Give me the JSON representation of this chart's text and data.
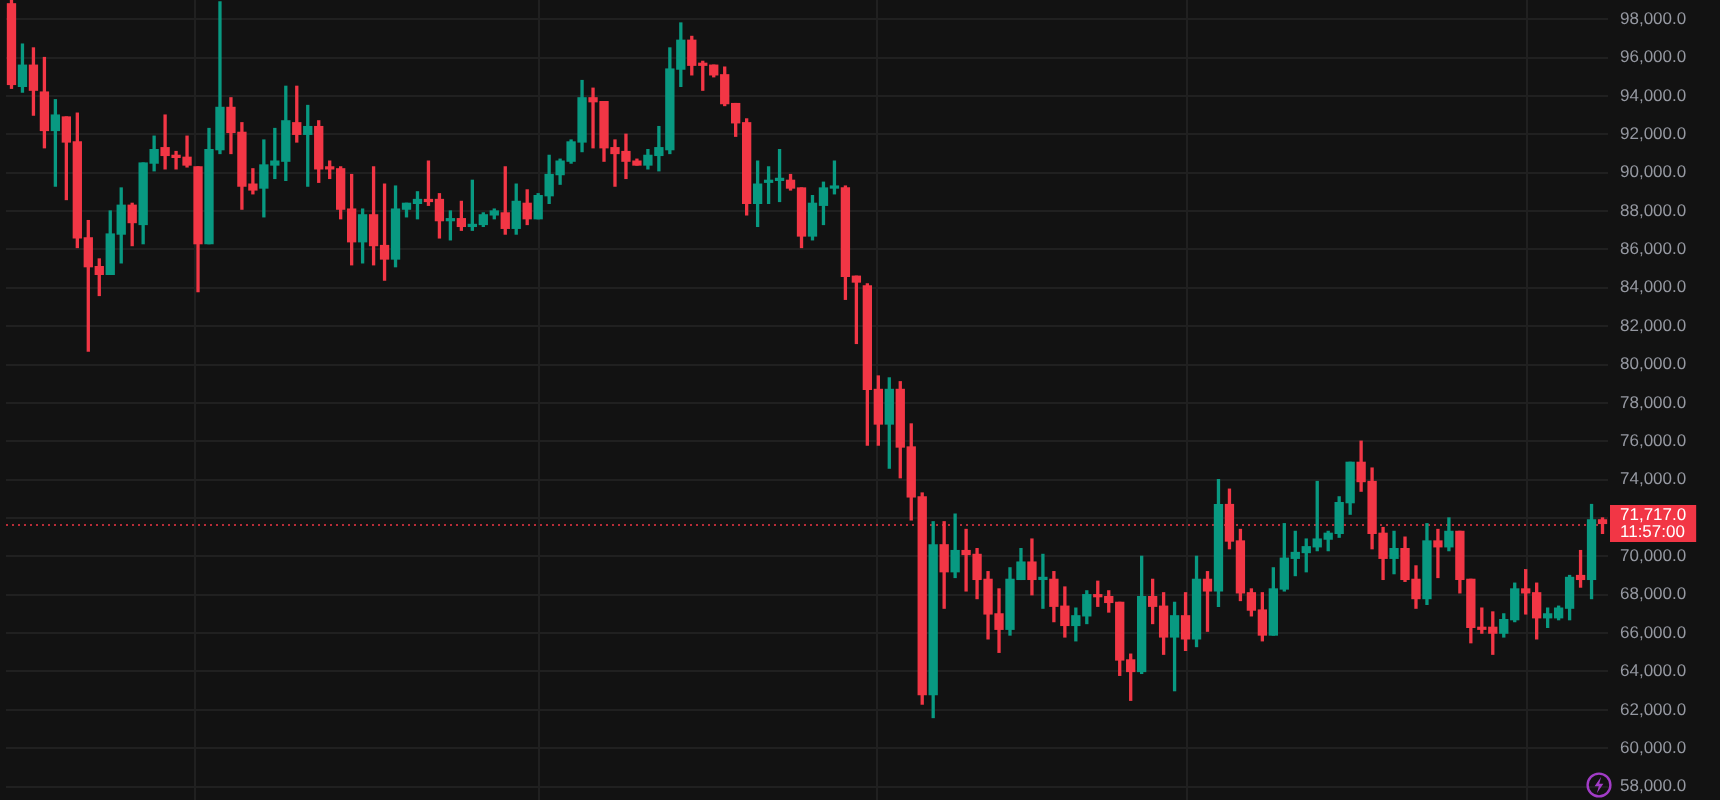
{
  "chart_data": {
    "type": "candlestick",
    "categories": [
      null,
      null,
      null,
      null,
      null,
      null,
      null,
      null,
      null,
      null,
      null,
      null,
      null,
      null,
      null,
      null,
      null,
      null,
      null,
      null,
      null,
      null,
      null,
      null,
      null,
      null,
      null,
      null,
      null,
      null,
      null,
      null,
      null,
      null,
      null,
      null,
      null,
      null,
      null,
      null,
      null,
      null,
      null,
      null,
      null,
      null,
      null,
      null,
      null,
      null,
      null,
      null,
      null,
      null,
      null,
      null,
      null,
      null,
      null,
      null,
      null,
      null,
      null,
      null,
      null,
      null,
      null,
      null,
      null,
      null,
      null,
      null,
      null,
      null,
      null,
      null,
      null,
      null,
      null,
      null,
      null,
      null,
      null,
      null,
      null,
      null,
      null,
      null,
      null,
      null,
      null,
      null,
      null,
      null,
      null,
      null,
      null,
      null,
      null,
      null,
      null,
      null,
      null,
      null,
      null,
      null,
      null,
      null,
      null,
      null,
      null,
      null,
      null,
      null,
      null,
      null,
      null,
      null,
      null,
      null,
      null,
      null,
      null,
      null,
      null,
      null,
      null,
      null,
      null,
      null,
      null,
      null,
      null,
      null,
      null,
      null,
      null,
      null,
      null,
      null,
      null,
      null,
      null,
      null,
      null,
      null
    ],
    "ohlc": [
      [
        98800,
        99000,
        94400,
        94600
      ],
      [
        94500,
        96700,
        94200,
        95600
      ],
      [
        95600,
        96500,
        93000,
        94300
      ],
      [
        94200,
        96000,
        91300,
        92200
      ],
      [
        92200,
        93800,
        89300,
        93000
      ],
      [
        92900,
        92900,
        88600,
        91600
      ],
      [
        91600,
        93100,
        86100,
        86600
      ],
      [
        86600,
        87500,
        80700,
        85100
      ],
      [
        85100,
        85500,
        83600,
        84700
      ],
      [
        84700,
        88000,
        84700,
        86800
      ],
      [
        86800,
        89200,
        85300,
        88300
      ],
      [
        88300,
        88400,
        86200,
        87400
      ],
      [
        87300,
        90500,
        86300,
        90500
      ],
      [
        90500,
        91900,
        90100,
        91200
      ],
      [
        91300,
        93000,
        90200,
        90900
      ],
      [
        90900,
        91100,
        90200,
        90800
      ],
      [
        90800,
        91900,
        90300,
        90400
      ],
      [
        90300,
        90300,
        83800,
        86300
      ],
      [
        86300,
        92300,
        86300,
        91200
      ],
      [
        91200,
        98900,
        91000,
        93400
      ],
      [
        93400,
        93900,
        91000,
        92100
      ],
      [
        92100,
        92600,
        88100,
        89300
      ],
      [
        89400,
        90200,
        88900,
        89100
      ],
      [
        89200,
        91700,
        87700,
        90400
      ],
      [
        90400,
        92300,
        89700,
        90600
      ],
      [
        90600,
        94500,
        89600,
        92700
      ],
      [
        92600,
        94500,
        91600,
        92000
      ],
      [
        92000,
        93500,
        89300,
        92400
      ],
      [
        92400,
        92700,
        89500,
        90200
      ],
      [
        90300,
        90600,
        89700,
        90200
      ],
      [
        90200,
        90300,
        87600,
        88100
      ],
      [
        88100,
        89900,
        85200,
        86400
      ],
      [
        86400,
        88100,
        85300,
        87800
      ],
      [
        87800,
        90300,
        85200,
        86200
      ],
      [
        86200,
        89400,
        84400,
        85500
      ],
      [
        85500,
        89300,
        85100,
        88100
      ],
      [
        88100,
        88400,
        87700,
        88400
      ],
      [
        88400,
        89000,
        87600,
        88600
      ],
      [
        88600,
        90600,
        88300,
        88500
      ],
      [
        88600,
        88900,
        86600,
        87500
      ],
      [
        87500,
        88000,
        86500,
        87600
      ],
      [
        87600,
        88500,
        87000,
        87200
      ],
      [
        87200,
        89600,
        87000,
        87300
      ],
      [
        87300,
        87900,
        87200,
        87800
      ],
      [
        87800,
        88100,
        87600,
        88000
      ],
      [
        87900,
        90300,
        86800,
        87100
      ],
      [
        87100,
        89400,
        86800,
        88500
      ],
      [
        88400,
        89100,
        87300,
        87600
      ],
      [
        87600,
        88900,
        87600,
        88800
      ],
      [
        88800,
        90900,
        88400,
        89900
      ],
      [
        89900,
        90700,
        89400,
        90600
      ],
      [
        90600,
        91700,
        90500,
        91600
      ],
      [
        91600,
        94800,
        91100,
        93900
      ],
      [
        93900,
        94400,
        91300,
        93700
      ],
      [
        93700,
        93700,
        90600,
        91300
      ],
      [
        91300,
        91700,
        89300,
        91000
      ],
      [
        91100,
        92000,
        89700,
        90600
      ],
      [
        90600,
        90700,
        90400,
        90400
      ],
      [
        90400,
        91200,
        90200,
        90900
      ],
      [
        90900,
        92400,
        90100,
        91300
      ],
      [
        91200,
        96500,
        91000,
        95400
      ],
      [
        95400,
        97800,
        94500,
        96900
      ],
      [
        96900,
        97100,
        95100,
        95600
      ],
      [
        95700,
        95800,
        94300,
        95600
      ],
      [
        95600,
        95600,
        95000,
        95100
      ],
      [
        95100,
        95500,
        93500,
        93600
      ],
      [
        93600,
        93600,
        91900,
        92600
      ],
      [
        92600,
        92800,
        87800,
        88400
      ],
      [
        88400,
        90600,
        87200,
        89400
      ],
      [
        89500,
        90300,
        88400,
        89600
      ],
      [
        89600,
        91200,
        88500,
        89700
      ],
      [
        89600,
        89900,
        89100,
        89200
      ],
      [
        89200,
        89200,
        86100,
        86700
      ],
      [
        86700,
        88800,
        86500,
        88400
      ],
      [
        88300,
        89500,
        87300,
        89200
      ],
      [
        89200,
        90600,
        88900,
        89300
      ],
      [
        89200,
        89300,
        83400,
        84600
      ],
      [
        84600,
        84600,
        81100,
        84300
      ],
      [
        84100,
        84200,
        75800,
        78700
      ],
      [
        78700,
        79400,
        75800,
        76900
      ],
      [
        76900,
        79300,
        74600,
        78700
      ],
      [
        78700,
        79100,
        74100,
        75700
      ],
      [
        75700,
        76900,
        71900,
        73100
      ],
      [
        73100,
        73300,
        62300,
        62800
      ],
      [
        62800,
        71800,
        61600,
        70600
      ],
      [
        70600,
        71800,
        67300,
        69200
      ],
      [
        69200,
        72200,
        68900,
        70300
      ],
      [
        70300,
        71400,
        68200,
        70100
      ],
      [
        70100,
        70400,
        67800,
        68800
      ],
      [
        68800,
        69200,
        65700,
        67000
      ],
      [
        67000,
        68300,
        65000,
        66200
      ],
      [
        66200,
        69400,
        65900,
        68800
      ],
      [
        68800,
        70400,
        68800,
        69700
      ],
      [
        69700,
        70900,
        68000,
        68800
      ],
      [
        68800,
        70100,
        67300,
        68900
      ],
      [
        68800,
        69200,
        66600,
        67400
      ],
      [
        67400,
        68400,
        65800,
        66400
      ],
      [
        66400,
        67300,
        65600,
        66900
      ],
      [
        66900,
        68200,
        66500,
        68000
      ],
      [
        68000,
        68700,
        67400,
        67900
      ],
      [
        67900,
        68200,
        67100,
        67600
      ],
      [
        67600,
        67600,
        63800,
        64600
      ],
      [
        64600,
        64900,
        62500,
        64000
      ],
      [
        64000,
        70000,
        63900,
        67900
      ],
      [
        67900,
        68800,
        66500,
        67400
      ],
      [
        67400,
        68100,
        64900,
        65800
      ],
      [
        65800,
        67600,
        63000,
        66900
      ],
      [
        66900,
        68100,
        65100,
        65700
      ],
      [
        65700,
        70000,
        65300,
        68800
      ],
      [
        68800,
        69200,
        66100,
        68200
      ],
      [
        68200,
        74000,
        67400,
        72700
      ],
      [
        72700,
        73500,
        70400,
        70800
      ],
      [
        70800,
        71400,
        67700,
        68100
      ],
      [
        68100,
        68300,
        66900,
        67200
      ],
      [
        67200,
        68100,
        65600,
        65900
      ],
      [
        65900,
        69400,
        65900,
        68300
      ],
      [
        68300,
        71700,
        68200,
        69900
      ],
      [
        69900,
        71300,
        69000,
        70200
      ],
      [
        70200,
        70900,
        69200,
        70500
      ],
      [
        70500,
        73900,
        70300,
        70900
      ],
      [
        70900,
        71300,
        70300,
        71200
      ],
      [
        71200,
        73100,
        71000,
        72800
      ],
      [
        72800,
        74900,
        72200,
        74900
      ],
      [
        74900,
        76000,
        73400,
        73900
      ],
      [
        73900,
        74600,
        70400,
        71200
      ],
      [
        71200,
        71500,
        68800,
        69900
      ],
      [
        69900,
        71300,
        69100,
        70400
      ],
      [
        70400,
        71000,
        68700,
        68800
      ],
      [
        68800,
        69500,
        67300,
        67800
      ],
      [
        67800,
        71700,
        67500,
        70800
      ],
      [
        70800,
        71400,
        68900,
        70500
      ],
      [
        70500,
        72000,
        70300,
        71300
      ],
      [
        71300,
        71300,
        68100,
        68800
      ],
      [
        68800,
        68800,
        65500,
        66300
      ],
      [
        66300,
        67300,
        66000,
        66200
      ],
      [
        66300,
        67100,
        64900,
        66000
      ],
      [
        66000,
        67000,
        65800,
        66700
      ],
      [
        66700,
        68600,
        66600,
        68300
      ],
      [
        68300,
        69300,
        67000,
        68100
      ],
      [
        68100,
        68600,
        65700,
        66800
      ],
      [
        66800,
        67300,
        66300,
        67000
      ],
      [
        66800,
        67400,
        66700,
        67300
      ],
      [
        67300,
        69000,
        66700,
        68900
      ],
      [
        69000,
        70300,
        68400,
        68800
      ],
      [
        68800,
        72700,
        67800,
        71900
      ],
      [
        71900,
        72000,
        71200,
        71717
      ]
    ],
    "colors": [
      "#f23645",
      "#089981",
      "#f23645",
      "#f23645",
      "#089981",
      "#f23645",
      "#f23645",
      "#f23645",
      "#f23645",
      "#089981",
      "#089981",
      "#f23645",
      "#089981",
      "#089981",
      "#f23645",
      "#f23645",
      "#f23645",
      "#f23645",
      "#089981",
      "#089981",
      "#f23645",
      "#f23645",
      "#f23645",
      "#089981",
      "#089981",
      "#089981",
      "#f23645",
      "#089981",
      "#f23645",
      "#f23645",
      "#f23645",
      "#f23645",
      "#089981",
      "#f23645",
      "#f23645",
      "#089981",
      "#089981",
      "#089981",
      "#f23645",
      "#f23645",
      "#089981",
      "#f23645",
      "#089981",
      "#089981",
      "#089981",
      "#f23645",
      "#089981",
      "#f23645",
      "#089981",
      "#089981",
      "#089981",
      "#089981",
      "#089981",
      "#f23645",
      "#f23645",
      "#f23645",
      "#f23645",
      "#f23645",
      "#089981",
      "#089981",
      "#089981",
      "#089981",
      "#f23645",
      "#f23645",
      "#f23645",
      "#f23645",
      "#f23645",
      "#f23645",
      "#089981",
      "#089981",
      "#089981",
      "#f23645",
      "#f23645",
      "#089981",
      "#089981",
      "#089981",
      "#f23645",
      "#f23645",
      "#f23645",
      "#f23645",
      "#089981",
      "#f23645",
      "#f23645",
      "#f23645",
      "#089981",
      "#f23645",
      "#089981",
      "#f23645",
      "#f23645",
      "#f23645",
      "#f23645",
      "#089981",
      "#089981",
      "#f23645",
      "#089981",
      "#f23645",
      "#f23645",
      "#089981",
      "#089981",
      "#f23645",
      "#f23645",
      "#f23645",
      "#f23645",
      "#089981",
      "#f23645",
      "#f23645",
      "#089981",
      "#f23645",
      "#089981",
      "#f23645",
      "#089981",
      "#f23645",
      "#f23645",
      "#f23645",
      "#f23645",
      "#089981",
      "#089981",
      "#089981",
      "#089981",
      "#089981",
      "#089981",
      "#089981",
      "#089981",
      "#f23645",
      "#f23645",
      "#f23645",
      "#089981",
      "#f23645",
      "#f23645",
      "#089981",
      "#f23645",
      "#089981",
      "#f23645",
      "#f23645",
      "#f23645",
      "#f23645",
      "#089981",
      "#089981",
      "#f23645",
      "#f23645",
      "#089981",
      "#089981",
      "#089981",
      "#f23645",
      "#089981",
      "#f23645"
    ],
    "ylim": [
      57300,
      99000
    ],
    "yticks": [
      {
        "value": 58000,
        "label": "58,000.0"
      },
      {
        "value": 60000,
        "label": "60,000.0"
      },
      {
        "value": 62000,
        "label": "62,000.0"
      },
      {
        "value": 64000,
        "label": "64,000.0"
      },
      {
        "value": 66000,
        "label": "66,000.0"
      },
      {
        "value": 68000,
        "label": "68,000.0"
      },
      {
        "value": 70000,
        "label": "70,000.0"
      },
      {
        "value": 72000,
        "label": null
      },
      {
        "value": 74000,
        "label": "74,000.0"
      },
      {
        "value": 76000,
        "label": "76,000.0"
      },
      {
        "value": 78000,
        "label": "78,000.0"
      },
      {
        "value": 80000,
        "label": "80,000.0"
      },
      {
        "value": 82000,
        "label": "82,000.0"
      },
      {
        "value": 84000,
        "label": "84,000.0"
      },
      {
        "value": 86000,
        "label": "86,000.0"
      },
      {
        "value": 88000,
        "label": "88,000.0"
      },
      {
        "value": 90000,
        "label": "90,000.0"
      },
      {
        "value": 92000,
        "label": "92,000.0"
      },
      {
        "value": 94000,
        "label": "94,000.0"
      },
      {
        "value": 96000,
        "label": "96,000.0"
      },
      {
        "value": 98000,
        "label": "98,000.0"
      }
    ],
    "tick_labels": "y",
    "grid": "y",
    "ref_lines": [
      {
        "axis": "y",
        "value": 71717,
        "label": "71,717.0",
        "color": "#f23645",
        "line_style": "dotted"
      }
    ],
    "annotations": [
      "11:57:00"
    ]
  }
}
